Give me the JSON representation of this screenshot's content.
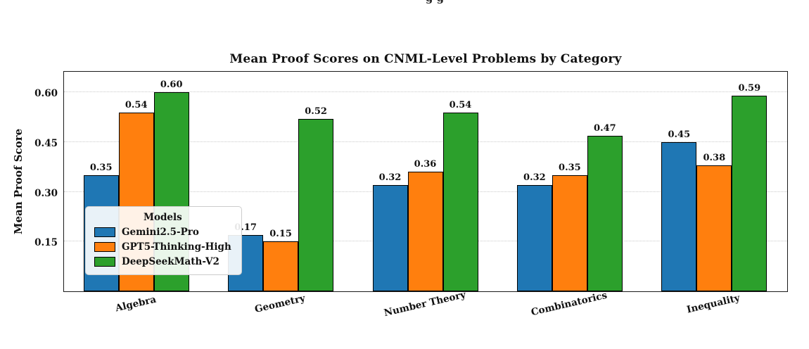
{
  "page": {
    "clipped_top_text": "g g"
  },
  "chart_data": {
    "type": "bar",
    "title": "Mean Proof Scores on CNML-Level Problems by Category",
    "xlabel": "",
    "ylabel": "Mean Proof Score",
    "categories": [
      "Algebra",
      "Geometry",
      "Number Theory",
      "Combinatorics",
      "Inequality"
    ],
    "series": [
      {
        "name": "Gemini2.5-Pro",
        "color": "#1f77b4",
        "values": [
          0.35,
          0.17,
          0.32,
          0.32,
          0.45
        ]
      },
      {
        "name": "GPT5-Thinking-High",
        "color": "#ff7f0e",
        "values": [
          0.54,
          0.15,
          0.36,
          0.35,
          0.38
        ]
      },
      {
        "name": "DeepSeekMath-V2",
        "color": "#2ca02c",
        "values": [
          0.6,
          0.52,
          0.54,
          0.47,
          0.59
        ]
      }
    ],
    "legend_title": "Models",
    "legend_position": "lower left",
    "yticks": [
      0.15,
      0.3,
      0.45,
      0.6
    ],
    "ylim": [
      0,
      0.66
    ],
    "grid": "dotted horizontal",
    "bar_edge_color": "#000000",
    "value_label_format": "0.00"
  }
}
